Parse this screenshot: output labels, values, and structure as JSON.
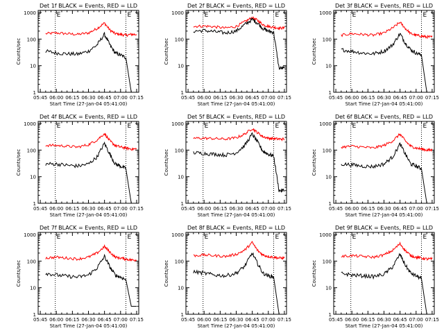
{
  "colors": {
    "background": "#ffffff",
    "events": "#000000",
    "lld": "#ff0000",
    "axis": "#000000"
  },
  "shared": {
    "ylabel": "Counts/sec",
    "xlabel": "Start Time (27-Jan-04 05:41:00)",
    "x_tick_labels": [
      "05:45",
      "06:00",
      "06:15",
      "06:30",
      "06:45",
      "07:00",
      "07:15"
    ],
    "y_tick_labels": [
      "1",
      "10",
      "100",
      "1000"
    ],
    "marker_labels": [
      "E",
      "E"
    ]
  },
  "chart_data": [
    {
      "type": "line",
      "title": "Det 1f BLACK = Events, RED = LLD",
      "xlabel": "Start Time (27-Jan-04 05:41:00)",
      "ylabel": "Counts/sec",
      "yscale": "log",
      "xlim": [
        "05:43",
        "07:17"
      ],
      "ylim": [
        1,
        1200
      ],
      "dotted_vlines": [
        "05:59",
        "07:05"
      ],
      "x": [
        "05:50",
        "06:00",
        "06:10",
        "06:20",
        "06:30",
        "06:38",
        "06:45",
        "06:50",
        "06:55",
        "07:00",
        "07:05",
        "07:10",
        "07:15"
      ],
      "series": [
        {
          "name": "LLD",
          "values": [
            160,
            170,
            160,
            150,
            170,
            250,
            400,
            220,
            160,
            150,
            140,
            150,
            150
          ]
        },
        {
          "name": "Events",
          "values": [
            35,
            30,
            28,
            27,
            35,
            60,
            150,
            60,
            30,
            25,
            20,
            1,
            1
          ]
        }
      ]
    },
    {
      "type": "line",
      "title": "Det 2f BLACK = Events, RED = LLD",
      "xlabel": "Start Time (27-Jan-04 05:41:00)",
      "ylabel": "Counts/sec",
      "yscale": "log",
      "xlim": [
        "05:43",
        "07:17"
      ],
      "ylim": [
        1,
        1200
      ],
      "dotted_vlines": [
        "05:59",
        "07:05"
      ],
      "x": [
        "05:50",
        "06:00",
        "06:10",
        "06:20",
        "06:30",
        "06:38",
        "06:45",
        "06:50",
        "06:55",
        "07:00",
        "07:05",
        "07:10",
        "07:15"
      ],
      "series": [
        {
          "name": "LLD",
          "values": [
            300,
            310,
            290,
            260,
            300,
            450,
            650,
            500,
            350,
            300,
            280,
            260,
            260
          ]
        },
        {
          "name": "Events",
          "values": [
            200,
            210,
            190,
            170,
            200,
            350,
            550,
            400,
            250,
            200,
            180,
            8,
            8
          ]
        }
      ]
    },
    {
      "type": "line",
      "title": "Det 3f BLACK = Events, RED = LLD",
      "xlabel": "Start Time (27-Jan-04 05:41:00)",
      "ylabel": "Counts/sec",
      "yscale": "log",
      "xlim": [
        "05:43",
        "07:17"
      ],
      "ylim": [
        1,
        1200
      ],
      "dotted_vlines": [
        "05:59",
        "07:05"
      ],
      "x": [
        "05:50",
        "06:00",
        "06:10",
        "06:20",
        "06:30",
        "06:38",
        "06:45",
        "06:50",
        "06:55",
        "07:00",
        "07:05",
        "07:10",
        "07:15"
      ],
      "series": [
        {
          "name": "LLD",
          "values": [
            140,
            160,
            150,
            140,
            170,
            260,
            430,
            250,
            160,
            140,
            130,
            120,
            120
          ]
        },
        {
          "name": "Events",
          "values": [
            40,
            35,
            30,
            28,
            35,
            60,
            160,
            70,
            40,
            30,
            25,
            1,
            1
          ]
        }
      ]
    },
    {
      "type": "line",
      "title": "Det 4f BLACK = Events, RED = LLD",
      "xlabel": "Start Time (27-Jan-04 05:41:00)",
      "ylabel": "Counts/sec",
      "yscale": "log",
      "xlim": [
        "05:43",
        "07:17"
      ],
      "ylim": [
        1,
        1200
      ],
      "dotted_vlines": [
        "05:59",
        "07:05"
      ],
      "x": [
        "05:50",
        "06:00",
        "06:10",
        "06:20",
        "06:30",
        "06:38",
        "06:45",
        "06:50",
        "06:55",
        "07:00",
        "07:05",
        "07:10",
        "07:15"
      ],
      "series": [
        {
          "name": "LLD",
          "values": [
            150,
            150,
            140,
            130,
            160,
            240,
            420,
            220,
            150,
            130,
            120,
            110,
            110
          ]
        },
        {
          "name": "Events",
          "values": [
            30,
            30,
            27,
            25,
            30,
            55,
            180,
            70,
            30,
            25,
            20,
            1,
            1
          ]
        }
      ]
    },
    {
      "type": "line",
      "title": "Det 5f BLACK = Events, RED = LLD",
      "xlabel": "Start Time (27-Jan-04 05:41:00)",
      "ylabel": "Counts/sec",
      "yscale": "log",
      "xlim": [
        "05:43",
        "07:17"
      ],
      "ylim": [
        1,
        1200
      ],
      "dotted_vlines": [
        "05:59",
        "07:05"
      ],
      "x": [
        "05:50",
        "06:00",
        "06:10",
        "06:20",
        "06:30",
        "06:38",
        "06:45",
        "06:50",
        "06:55",
        "07:00",
        "07:05",
        "07:10",
        "07:15"
      ],
      "series": [
        {
          "name": "LLD",
          "values": [
            280,
            280,
            270,
            260,
            290,
            400,
            650,
            450,
            320,
            280,
            270,
            260,
            260
          ]
        },
        {
          "name": "Events",
          "values": [
            80,
            75,
            70,
            65,
            80,
            150,
            400,
            200,
            90,
            70,
            60,
            3,
            3
          ]
        }
      ]
    },
    {
      "type": "line",
      "title": "Det 6f BLACK = Events, RED = LLD",
      "xlabel": "Start Time (27-Jan-04 05:41:00)",
      "ylabel": "Counts/sec",
      "yscale": "log",
      "xlim": [
        "05:43",
        "07:17"
      ],
      "ylim": [
        1,
        1200
      ],
      "dotted_vlines": [
        "05:59",
        "07:05"
      ],
      "x": [
        "05:50",
        "06:00",
        "06:10",
        "06:20",
        "06:30",
        "06:38",
        "06:45",
        "06:50",
        "06:55",
        "07:00",
        "07:05",
        "07:10",
        "07:15"
      ],
      "series": [
        {
          "name": "LLD",
          "values": [
            130,
            140,
            130,
            120,
            150,
            220,
            400,
            220,
            140,
            120,
            110,
            100,
            100
          ]
        },
        {
          "name": "Events",
          "values": [
            30,
            28,
            25,
            24,
            30,
            55,
            170,
            70,
            30,
            25,
            20,
            1,
            1
          ]
        }
      ]
    },
    {
      "type": "line",
      "title": "Det 7f BLACK = Events, RED = LLD",
      "xlabel": "Start Time (27-Jan-04 05:41:00)",
      "ylabel": "Counts/sec",
      "yscale": "log",
      "xlim": [
        "05:43",
        "07:17"
      ],
      "ylim": [
        1,
        1200
      ],
      "dotted_vlines": [
        "05:59",
        "07:05"
      ],
      "x": [
        "05:50",
        "06:00",
        "06:10",
        "06:20",
        "06:30",
        "06:38",
        "06:45",
        "06:50",
        "06:55",
        "07:00",
        "07:05",
        "07:10",
        "07:15"
      ],
      "series": [
        {
          "name": "LLD",
          "values": [
            130,
            140,
            130,
            120,
            140,
            200,
            350,
            220,
            140,
            130,
            120,
            110,
            110
          ]
        },
        {
          "name": "Events",
          "values": [
            35,
            30,
            27,
            25,
            30,
            55,
            150,
            60,
            30,
            25,
            20,
            2,
            2
          ]
        }
      ]
    },
    {
      "type": "line",
      "title": "Det 8f BLACK = Events, RED = LLD",
      "xlabel": "Start Time (27-Jan-04 05:41:00)",
      "ylabel": "Counts/sec",
      "yscale": "log",
      "xlim": [
        "05:43",
        "07:17"
      ],
      "ylim": [
        1,
        1200
      ],
      "dotted_vlines": [
        "05:59",
        "07:05"
      ],
      "x": [
        "05:50",
        "06:00",
        "06:10",
        "06:20",
        "06:30",
        "06:38",
        "06:45",
        "06:50",
        "06:55",
        "07:00",
        "07:05",
        "07:10",
        "07:15"
      ],
      "series": [
        {
          "name": "LLD",
          "values": [
            160,
            170,
            160,
            150,
            180,
            260,
            500,
            250,
            170,
            150,
            140,
            130,
            130
          ]
        },
        {
          "name": "Events",
          "values": [
            40,
            35,
            30,
            28,
            35,
            65,
            200,
            80,
            35,
            28,
            25,
            1,
            1
          ]
        }
      ]
    },
    {
      "type": "line",
      "title": "Det 9f BLACK = Events, RED = LLD",
      "xlabel": "Start Time (27-Jan-04 05:41:00)",
      "ylabel": "Counts/sec",
      "yscale": "log",
      "xlim": [
        "05:43",
        "07:17"
      ],
      "ylim": [
        1,
        1200
      ],
      "dotted_vlines": [
        "05:59",
        "07:05"
      ],
      "x": [
        "05:50",
        "06:00",
        "06:10",
        "06:20",
        "06:30",
        "06:38",
        "06:45",
        "06:50",
        "06:55",
        "07:00",
        "07:05",
        "07:10",
        "07:15"
      ],
      "series": [
        {
          "name": "LLD",
          "values": [
            150,
            160,
            150,
            140,
            170,
            250,
            450,
            250,
            160,
            140,
            130,
            120,
            120
          ]
        },
        {
          "name": "Events",
          "values": [
            35,
            30,
            28,
            26,
            32,
            60,
            180,
            70,
            35,
            28,
            22,
            1,
            1
          ]
        }
      ]
    }
  ]
}
